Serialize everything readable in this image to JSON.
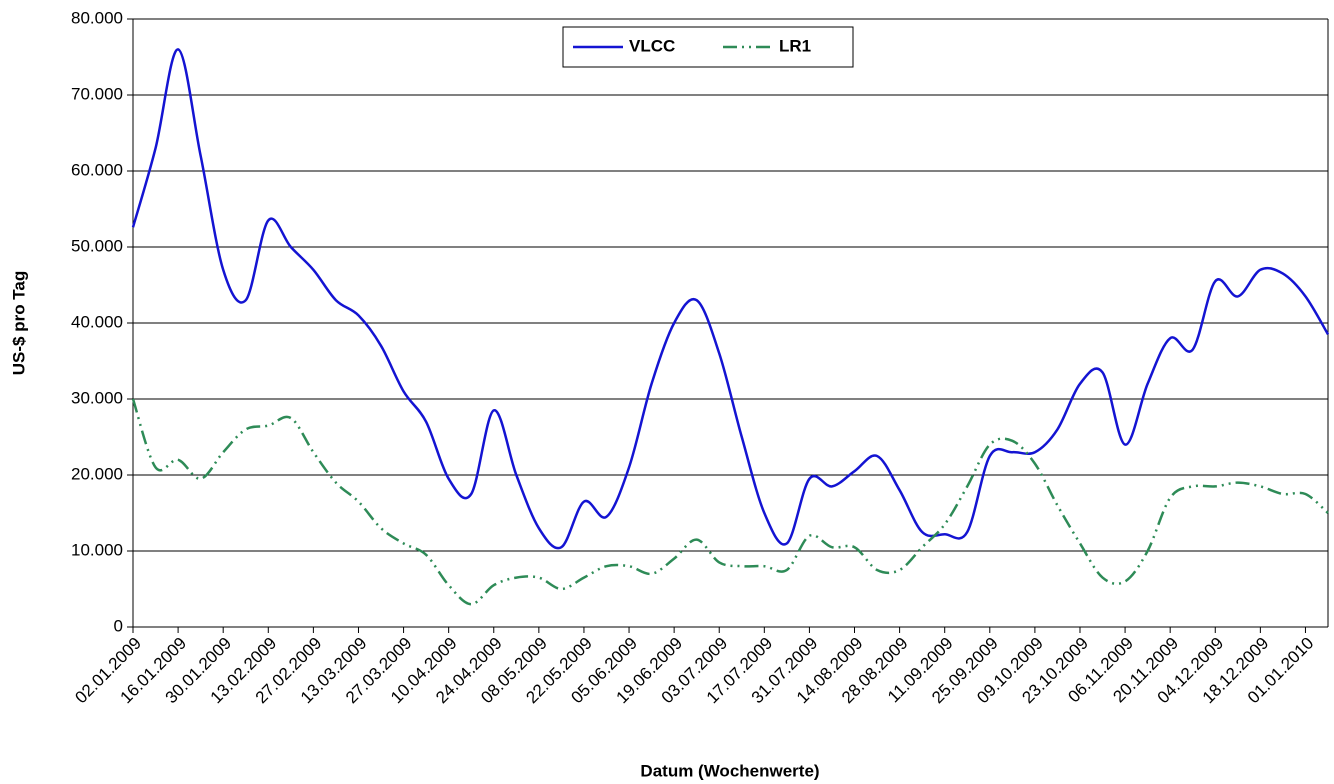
{
  "chart_data": {
    "type": "line",
    "x_label": "Datum (Wochenwerte)",
    "y_label": "US-$ pro Tag",
    "categories": [
      "02.01.2009",
      null,
      "16.01.2009",
      null,
      "30.01.2009",
      null,
      "13.02.2009",
      null,
      "27.02.2009",
      null,
      "13.03.2009",
      null,
      "27.03.2009",
      null,
      "10.04.2009",
      null,
      "24.04.2009",
      null,
      "08.05.2009",
      null,
      "22.05.2009",
      null,
      "05.06.2009",
      null,
      "19.06.2009",
      null,
      "03.07.2009",
      null,
      "17.07.2009",
      null,
      "31.07.2009",
      null,
      "14.08.2009",
      null,
      "28.08.2009",
      null,
      "11.09.2009",
      null,
      "25.09.2009",
      null,
      "09.10.2009",
      null,
      "23.10.2009",
      null,
      "06.11.2009",
      null,
      "20.11.2009",
      null,
      "04.12.2009",
      null,
      "18.12.2009",
      null,
      "01.01.2010",
      null
    ],
    "series": [
      {
        "name": "VLCC",
        "color": "#1414d2",
        "line_style": "solid",
        "values": [
          52600,
          63000,
          76000,
          62000,
          47000,
          43000,
          53500,
          50000,
          47000,
          43000,
          41000,
          37000,
          31000,
          27000,
          19500,
          17500,
          28500,
          20000,
          13000,
          10500,
          16500,
          14500,
          21000,
          32000,
          40000,
          43000,
          36000,
          25000,
          15000,
          11000,
          19500,
          18500,
          20500,
          22500,
          18000,
          12500,
          12200,
          12500,
          22500,
          23000,
          23000,
          26000,
          32000,
          33500,
          24000,
          32000,
          38000,
          36500,
          45500,
          43500,
          47000,
          46500,
          43500,
          38500
        ]
      },
      {
        "name": "LR1",
        "color": "#2e8b57",
        "line_style": "dash-dot-dot",
        "values": [
          30000,
          21000,
          22000,
          19500,
          23000,
          26000,
          26500,
          27500,
          23000,
          19000,
          16500,
          13000,
          11000,
          9500,
          5500,
          3000,
          5500,
          6500,
          6500,
          5000,
          6500,
          8000,
          8000,
          7000,
          9000,
          11500,
          8500,
          8000,
          8000,
          7500,
          12000,
          10500,
          10500,
          7500,
          7500,
          10500,
          13500,
          18500,
          24000,
          24500,
          21500,
          16000,
          11000,
          6500,
          6000,
          10000,
          17000,
          18500,
          18500,
          19000,
          18500,
          17500,
          17500,
          15000
        ]
      }
    ],
    "ylim": [
      0,
      80000
    ],
    "yticks": [
      0,
      {
        "value": 10000,
        "label": "10.000"
      },
      {
        "value": 20000,
        "label": "20.000"
      },
      {
        "value": 30000,
        "label": "30.000"
      },
      {
        "value": 40000,
        "label": "40.000"
      },
      {
        "value": 50000,
        "label": "50.000"
      },
      {
        "value": 60000,
        "label": "60.000"
      },
      {
        "value": 70000,
        "label": "70.000"
      },
      {
        "value": 80000,
        "label": "80.000"
      }
    ],
    "grid": true,
    "legend": "top"
  }
}
